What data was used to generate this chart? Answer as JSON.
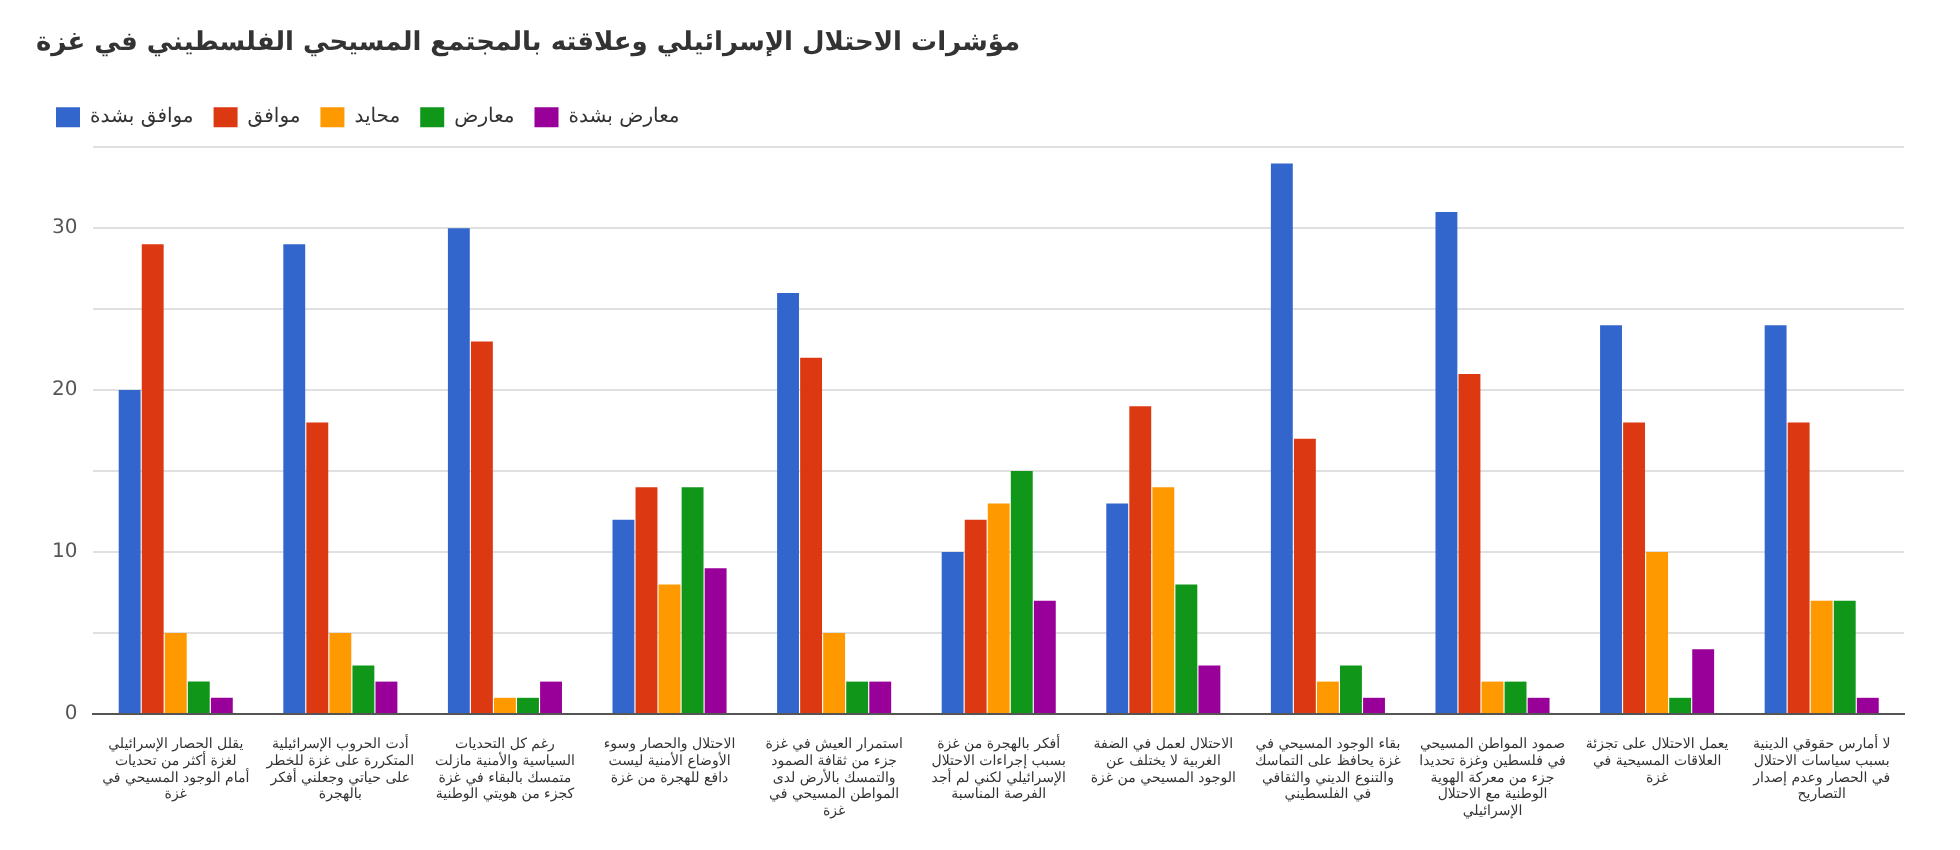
{
  "chart_data": {
    "type": "bar",
    "title": "مؤشرات الاحتلال الإسرائيلي وعلاقته بالمجتمع المسيحي الفلسطيني في غزة",
    "categories": [
      "يقلل الحصار الإسرائيلي لغزة أكثر من تحديات أمام الوجود المسيحي في غزة",
      "أدت الحروب الإسرائيلية المتكررة على غزة للخطر على حياتي وجعلني أفكر بالهجرة",
      "رغم كل التحديات السياسية والأمنية مازلت متمسك بالبقاء في غزة كجزء من هويتي الوطنية",
      "الاحتلال والحصار وسوء الأوضاع الأمنية ليست دافع للهجرة من غزة",
      "استمرار العيش في غزة جزء من ثقافة الصمود والتمسك بالأرض لدى المواطن المسيحي في غزة",
      "أفكر بالهجرة من غزة بسبب إجراءات الاحتلال الإسرائيلي لكني لم أجد الفرصة المناسبة",
      "الاحتلال لعمل في الضفة الغربية لا يختلف عن الوجود المسيحي من غزة",
      "بقاء الوجود المسيحي في غزة يحافظ على التماسك والتنوع الديني والثقافي في الفلسطيني",
      "صمود المواطن المسيحي في فلسطين وغزة تحديدا جزء من معركة الهوية الوطنية مع الاحتلال الإسرائيلي",
      "يعمل الاحتلال على تجزئة العلاقات المسيحية في غزة",
      "لا أمارس حقوقي الدينية بسبب سياسات الاحتلال في الحصار وعدم إصدار التصاريح"
    ],
    "series": [
      {
        "name": "موافق بشدة",
        "color": "#3366cc",
        "values": [
          20,
          29,
          30,
          12,
          26,
          10,
          13,
          34,
          31,
          24,
          24
        ]
      },
      {
        "name": "موافق",
        "color": "#dc3912",
        "values": [
          29,
          18,
          23,
          14,
          22,
          12,
          19,
          17,
          21,
          18,
          18
        ]
      },
      {
        "name": "محايد",
        "color": "#ff9900",
        "values": [
          5,
          5,
          1,
          8,
          5,
          13,
          14,
          2,
          2,
          10,
          7
        ]
      },
      {
        "name": "معارض",
        "color": "#109618",
        "values": [
          2,
          3,
          1,
          14,
          2,
          15,
          8,
          3,
          2,
          1,
          7
        ]
      },
      {
        "name": "معارض بشدة",
        "color": "#990099",
        "values": [
          1,
          2,
          2,
          9,
          2,
          7,
          3,
          1,
          1,
          4,
          1
        ]
      }
    ],
    "ylim": [
      0,
      35
    ],
    "yticks": [
      0,
      {
        "value": 5,
        "label": null
      },
      10,
      {
        "value": 15,
        "label": null
      },
      20,
      {
        "value": 25,
        "label": null
      },
      30,
      {
        "value": 35,
        "label": null
      }
    ],
    "grid": "y",
    "legend": "top left"
  }
}
